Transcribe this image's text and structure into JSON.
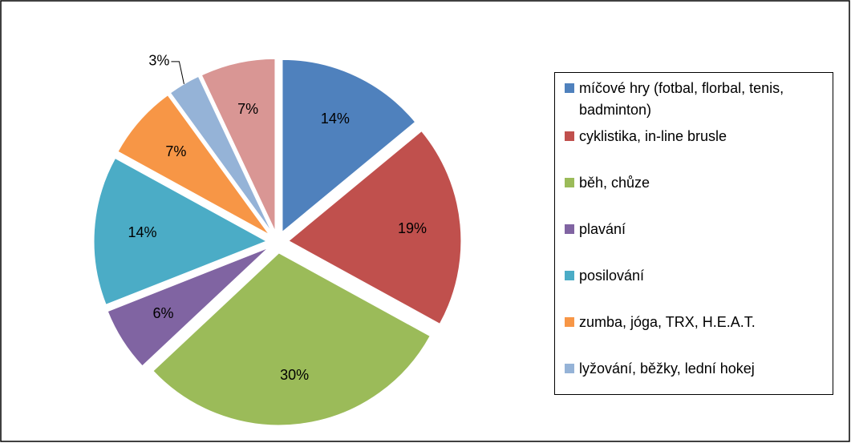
{
  "chart_data": {
    "type": "pie",
    "categories": [
      "míčové hry (fotbal, florbal, tenis, badminton)",
      "cyklistika, in-line brusle",
      "běh, chůze",
      "plavání",
      "posilování",
      "zumba, jóga, TRX, H.E.A.T.",
      "lyžování, běžky, lední hokej",
      null
    ],
    "values": [
      14,
      19,
      30,
      6,
      14,
      7,
      3,
      7
    ],
    "value_labels": [
      "14%",
      "19%",
      "30%",
      "6%",
      "14%",
      "7%",
      "3%",
      "7%"
    ],
    "colors": [
      "#4f81bd",
      "#c0504d",
      "#9bbb59",
      "#8064a2",
      "#4bacc6",
      "#f79646",
      "#95b3d7",
      "#d99694"
    ],
    "legend": "right"
  }
}
